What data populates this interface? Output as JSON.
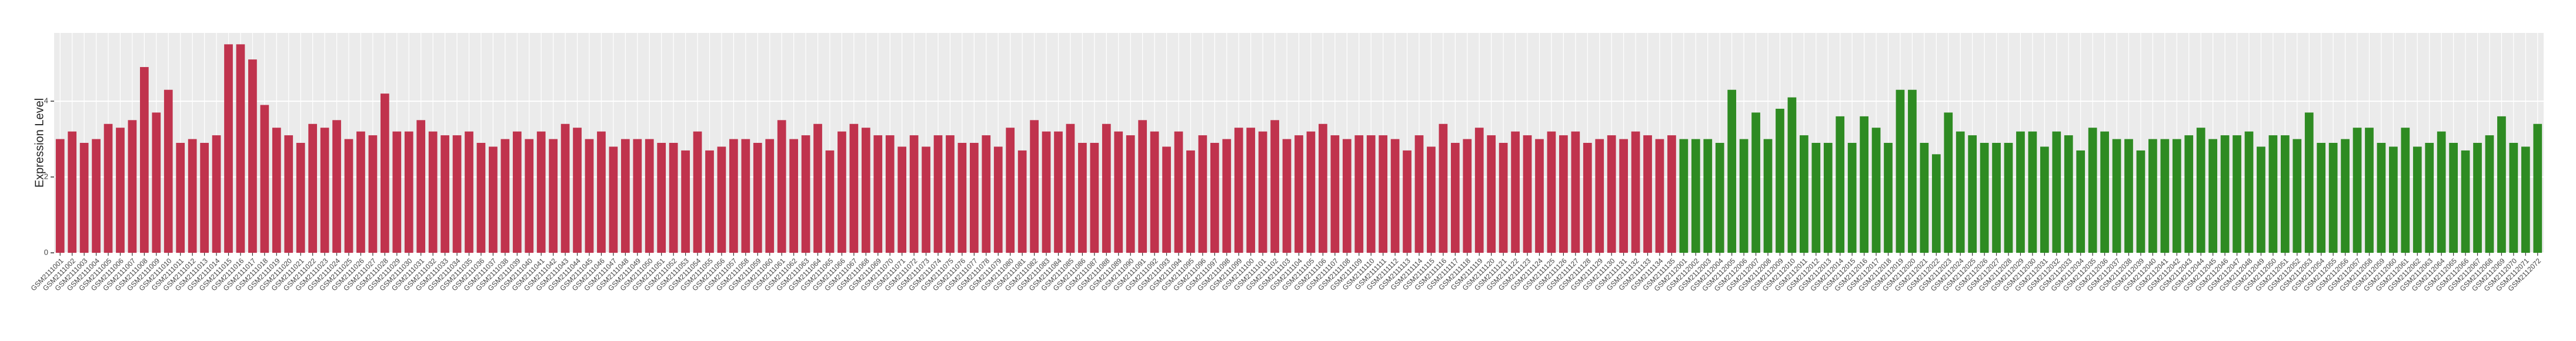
{
  "chart_data": {
    "type": "bar",
    "y_label": "Expression Level",
    "ylim": [
      0,
      5.8
    ],
    "yticks": [
      0,
      2,
      4
    ],
    "grid": true,
    "series": [
      {
        "color": "#c0334d",
        "categories": [
          "GSM2111001",
          "GSM2111002",
          "GSM2111003",
          "GSM2111004",
          "GSM2111005",
          "GSM2111006",
          "GSM2111007",
          "GSM2111008",
          "GSM2111009",
          "GSM2111010",
          "GSM2111011",
          "GSM2111012",
          "GSM2111013",
          "GSM2111014",
          "GSM2111015",
          "GSM2111016",
          "GSM2111017",
          "GSM2111018",
          "GSM2111019",
          "GSM2111020",
          "GSM2111021",
          "GSM2111022",
          "GSM2111023",
          "GSM2111024",
          "GSM2111025",
          "GSM2111026",
          "GSM2111027",
          "GSM2111028",
          "GSM2111029",
          "GSM2111030",
          "GSM2111031",
          "GSM2111032",
          "GSM2111033",
          "GSM2111034",
          "GSM2111035",
          "GSM2111036",
          "GSM2111037",
          "GSM2111038",
          "GSM2111039",
          "GSM2111040",
          "GSM2111041",
          "GSM2111042",
          "GSM2111043",
          "GSM2111044",
          "GSM2111045",
          "GSM2111046",
          "GSM2111047",
          "GSM2111048",
          "GSM2111049",
          "GSM2111050",
          "GSM2111051",
          "GSM2111052",
          "GSM2111053",
          "GSM2111054",
          "GSM2111055",
          "GSM2111056",
          "GSM2111057",
          "GSM2111058",
          "GSM2111059",
          "GSM2111060",
          "GSM2111061",
          "GSM2111062",
          "GSM2111063",
          "GSM2111064",
          "GSM2111065",
          "GSM2111066",
          "GSM2111067",
          "GSM2111068",
          "GSM2111069",
          "GSM2111070",
          "GSM2111071",
          "GSM2111072",
          "GSM2111073",
          "GSM2111074",
          "GSM2111075",
          "GSM2111076",
          "GSM2111077",
          "GSM2111078",
          "GSM2111079",
          "GSM2111080",
          "GSM2111081",
          "GSM2111082",
          "GSM2111083",
          "GSM2111084",
          "GSM2111085",
          "GSM2111086",
          "GSM2111087",
          "GSM2111088",
          "GSM2111089",
          "GSM2111090",
          "GSM2111091",
          "GSM2111092",
          "GSM2111093",
          "GSM2111094",
          "GSM2111095",
          "GSM2111096",
          "GSM2111097",
          "GSM2111098",
          "GSM2111099",
          "GSM2111100",
          "GSM2111101",
          "GSM2111102",
          "GSM2111103",
          "GSM2111104",
          "GSM2111105",
          "GSM2111106",
          "GSM2111107",
          "GSM2111108",
          "GSM2111109",
          "GSM2111110",
          "GSM2111111",
          "GSM2111112",
          "GSM2111113",
          "GSM2111114",
          "GSM2111115",
          "GSM2111116",
          "GSM2111117",
          "GSM2111118",
          "GSM2111119",
          "GSM2111120",
          "GSM2111121",
          "GSM2111122",
          "GSM2111123",
          "GSM2111124",
          "GSM2111125",
          "GSM2111126",
          "GSM2111127",
          "GSM2111128",
          "GSM2111129",
          "GSM2111130",
          "GSM2111131",
          "GSM2111132",
          "GSM2111133",
          "GSM2111134",
          "GSM2111135"
        ],
        "values": [
          3.0,
          3.2,
          2.9,
          3.0,
          3.4,
          3.3,
          3.5,
          4.9,
          3.7,
          4.3,
          2.9,
          3.0,
          2.9,
          3.1,
          5.5,
          5.5,
          5.1,
          3.9,
          3.3,
          3.1,
          2.9,
          3.4,
          3.3,
          3.5,
          3.0,
          3.2,
          3.1,
          4.2,
          3.2,
          3.2,
          3.5,
          3.2,
          3.1,
          3.1,
          3.2,
          2.9,
          2.8,
          3.0,
          3.2,
          3.0,
          3.2,
          3.0,
          3.4,
          3.3,
          3.0,
          3.2,
          2.8,
          3.0,
          3.0,
          3.0,
          2.9,
          2.9,
          2.7,
          3.2,
          2.7,
          2.8,
          3.0,
          3.0,
          2.9,
          3.0,
          3.5,
          3.0,
          3.1,
          3.4,
          2.7,
          3.2,
          3.4,
          3.3,
          3.1,
          3.1,
          2.8,
          3.1,
          2.8,
          3.1,
          3.1,
          2.9,
          2.9,
          3.1,
          2.8,
          3.3,
          2.7,
          3.5,
          3.2,
          3.2,
          3.4,
          2.9,
          2.9,
          3.4,
          3.2,
          3.1,
          3.5,
          3.2,
          2.8,
          3.2,
          2.7,
          3.1,
          2.9,
          3.0,
          3.3,
          3.3,
          3.2,
          3.5,
          3.0,
          3.1,
          3.2,
          3.4,
          3.1,
          3.0,
          3.1,
          3.1,
          3.1,
          3.0,
          2.7,
          3.1,
          2.8,
          3.4,
          2.9,
          3.0,
          3.3,
          3.1,
          2.9,
          3.2,
          3.1,
          3.0,
          3.2,
          3.1,
          3.2,
          2.9,
          3.0,
          3.1,
          3.0,
          3.2,
          3.1,
          3.0,
          3.1
        ]
      },
      {
        "color": "#2e8b22",
        "categories": [
          "GSM2112001",
          "GSM2112002",
          "GSM2112003",
          "GSM2112004",
          "GSM2112005",
          "GSM2112006",
          "GSM2112007",
          "GSM2112008",
          "GSM2112009",
          "GSM2112010",
          "GSM2112011",
          "GSM2112012",
          "GSM2112013",
          "GSM2112014",
          "GSM2112015",
          "GSM2112016",
          "GSM2112017",
          "GSM2112018",
          "GSM2112019",
          "GSM2112020",
          "GSM2112021",
          "GSM2112022",
          "GSM2112023",
          "GSM2112024",
          "GSM2112025",
          "GSM2112026",
          "GSM2112027",
          "GSM2112028",
          "GSM2112029",
          "GSM2112030",
          "GSM2112031",
          "GSM2112032",
          "GSM2112033",
          "GSM2112034",
          "GSM2112035",
          "GSM2112036",
          "GSM2112037",
          "GSM2112038",
          "GSM2112039",
          "GSM2112040",
          "GSM2112041",
          "GSM2112042",
          "GSM2112043",
          "GSM2112044",
          "GSM2112045",
          "GSM2112046",
          "GSM2112047",
          "GSM2112048",
          "GSM2112049",
          "GSM2112050",
          "GSM2112051",
          "GSM2112052",
          "GSM2112053",
          "GSM2112054",
          "GSM2112055",
          "GSM2112056",
          "GSM2112057",
          "GSM2112058",
          "GSM2112059",
          "GSM2112060",
          "GSM2112061",
          "GSM2112062",
          "GSM2112063",
          "GSM2112064",
          "GSM2112065",
          "GSM2112066",
          "GSM2112067",
          "GSM2112068",
          "GSM2112069",
          "GSM2112070",
          "GSM2112071",
          "GSM2112072"
        ],
        "values": [
          3.0,
          3.0,
          3.0,
          2.9,
          4.3,
          3.0,
          3.7,
          3.0,
          3.8,
          4.1,
          3.1,
          2.9,
          2.9,
          3.6,
          2.9,
          3.6,
          3.3,
          2.9,
          4.3,
          4.3,
          2.9,
          2.6,
          3.7,
          3.2,
          3.1,
          2.9,
          2.9,
          2.9,
          3.2,
          3.2,
          2.8,
          3.2,
          3.1,
          2.7,
          3.3,
          3.2,
          3.0,
          3.0,
          2.7,
          3.0,
          3.0,
          3.0,
          3.1,
          3.3,
          3.0,
          3.1,
          3.1,
          3.2,
          2.8,
          3.1,
          3.1,
          3.0,
          3.7,
          2.9,
          2.9,
          3.0,
          3.3,
          3.3,
          2.9,
          2.8,
          3.3,
          2.8,
          2.9,
          3.2,
          2.9,
          2.7,
          2.9,
          3.1,
          3.6,
          2.9,
          2.8,
          3.4
        ]
      }
    ]
  }
}
